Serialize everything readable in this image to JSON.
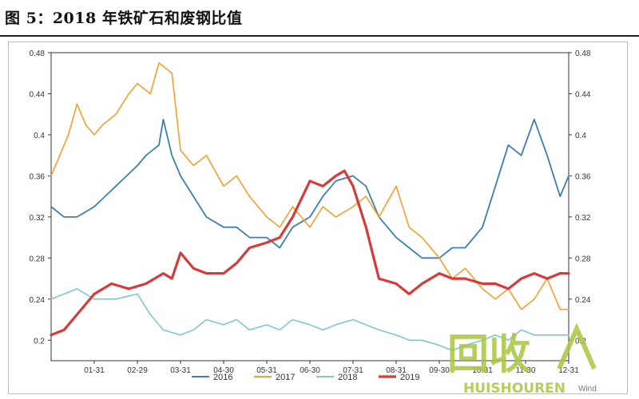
{
  "figure": {
    "title": "图 5：2018 年铁矿石和废钢比值"
  },
  "colors": {
    "2016": "#3b7fb0",
    "2017": "#f4a02e",
    "2018": "#7fc8cf",
    "2019": "#d63a3a",
    "axis": "#333333",
    "watermark": "#a8c43c"
  },
  "watermark": {
    "main": "回收",
    "sub": "HUISHOUREN",
    "source": "Wind"
  },
  "chart_data": {
    "type": "line",
    "title": "",
    "xlabel": "",
    "ylabel": "",
    "ylim": [
      0.18,
      0.48
    ],
    "yticks": [
      "0.2",
      "0.24",
      "0.28",
      "0.32",
      "0.36",
      "0.4",
      "0.44",
      "0.48"
    ],
    "ytick_values": [
      0.2,
      0.24,
      0.28,
      0.32,
      0.36,
      0.4,
      0.44,
      0.48
    ],
    "xlim": [
      0,
      12
    ],
    "xticks": [
      "01-31",
      "02-29",
      "03-31",
      "04-30",
      "05-31",
      "06-30",
      "07-31",
      "08-31",
      "09-30",
      "10-31",
      "11-30",
      "12-31"
    ],
    "xtick_values": [
      1,
      2,
      3,
      4,
      5,
      6,
      7,
      8,
      9,
      10,
      11,
      12
    ],
    "legend": {
      "position": "bottom"
    },
    "series": [
      {
        "name": "2016",
        "x": [
          0,
          0.3,
          0.6,
          1.0,
          1.5,
          2.0,
          2.2,
          2.5,
          2.6,
          2.8,
          3.0,
          3.3,
          3.6,
          4.0,
          4.3,
          4.6,
          5.0,
          5.3,
          5.6,
          6.0,
          6.3,
          6.6,
          7.0,
          7.3,
          7.6,
          8.0,
          8.3,
          8.6,
          9.0,
          9.3,
          9.6,
          10.0,
          10.3,
          10.6,
          10.9,
          11.2,
          11.5,
          11.8,
          12.0
        ],
        "values": [
          0.33,
          0.32,
          0.32,
          0.33,
          0.35,
          0.37,
          0.38,
          0.39,
          0.415,
          0.38,
          0.36,
          0.34,
          0.32,
          0.31,
          0.31,
          0.3,
          0.3,
          0.29,
          0.31,
          0.32,
          0.34,
          0.355,
          0.36,
          0.35,
          0.32,
          0.3,
          0.29,
          0.28,
          0.28,
          0.29,
          0.29,
          0.31,
          0.35,
          0.39,
          0.38,
          0.415,
          0.38,
          0.34,
          0.36
        ]
      },
      {
        "name": "2017",
        "x": [
          0,
          0.2,
          0.4,
          0.6,
          0.8,
          1.0,
          1.2,
          1.5,
          1.8,
          2.0,
          2.3,
          2.5,
          2.8,
          3.0,
          3.3,
          3.6,
          4.0,
          4.3,
          4.6,
          5.0,
          5.3,
          5.6,
          6.0,
          6.3,
          6.6,
          7.0,
          7.3,
          7.6,
          8.0,
          8.3,
          8.6,
          9.0,
          9.3,
          9.6,
          10.0,
          10.3,
          10.6,
          10.9,
          11.2,
          11.5,
          11.8,
          12.0
        ],
        "values": [
          0.36,
          0.38,
          0.4,
          0.43,
          0.41,
          0.4,
          0.41,
          0.42,
          0.44,
          0.45,
          0.44,
          0.47,
          0.46,
          0.385,
          0.37,
          0.38,
          0.35,
          0.36,
          0.34,
          0.32,
          0.31,
          0.33,
          0.31,
          0.33,
          0.32,
          0.33,
          0.34,
          0.32,
          0.35,
          0.31,
          0.3,
          0.28,
          0.26,
          0.27,
          0.25,
          0.24,
          0.25,
          0.23,
          0.24,
          0.26,
          0.23,
          0.23
        ]
      },
      {
        "name": "2018",
        "x": [
          0,
          0.3,
          0.6,
          1.0,
          1.5,
          2.0,
          2.3,
          2.6,
          3.0,
          3.3,
          3.6,
          4.0,
          4.3,
          4.6,
          5.0,
          5.3,
          5.6,
          6.0,
          6.3,
          6.6,
          7.0,
          7.3,
          7.6,
          8.0,
          8.3,
          8.6,
          9.0,
          9.3,
          9.6,
          10.0,
          10.3,
          10.6,
          10.9,
          11.2,
          11.5,
          11.8,
          12.0
        ],
        "values": [
          0.24,
          0.245,
          0.25,
          0.24,
          0.24,
          0.245,
          0.225,
          0.21,
          0.205,
          0.21,
          0.22,
          0.215,
          0.22,
          0.21,
          0.215,
          0.21,
          0.22,
          0.215,
          0.21,
          0.215,
          0.22,
          0.215,
          0.21,
          0.205,
          0.2,
          0.2,
          0.195,
          0.19,
          0.195,
          0.2,
          0.205,
          0.2,
          0.21,
          0.205,
          0.205,
          0.205,
          0.205
        ]
      },
      {
        "name": "2019",
        "x": [
          0,
          0.3,
          0.6,
          1.0,
          1.4,
          1.8,
          2.2,
          2.6,
          2.8,
          3.0,
          3.3,
          3.6,
          4.0,
          4.3,
          4.6,
          5.0,
          5.3,
          5.6,
          6.0,
          6.3,
          6.6,
          6.8,
          7.0,
          7.3,
          7.6,
          8.0,
          8.3,
          8.6,
          9.0,
          9.3,
          9.6,
          10.0,
          10.3,
          10.6,
          10.9,
          11.2,
          11.5,
          11.8,
          12.0
        ],
        "values": [
          0.205,
          0.21,
          0.225,
          0.245,
          0.255,
          0.25,
          0.255,
          0.265,
          0.26,
          0.285,
          0.27,
          0.265,
          0.265,
          0.275,
          0.29,
          0.295,
          0.3,
          0.32,
          0.355,
          0.35,
          0.36,
          0.365,
          0.35,
          0.31,
          0.26,
          0.255,
          0.245,
          0.255,
          0.265,
          0.26,
          0.26,
          0.255,
          0.255,
          0.25,
          0.26,
          0.265,
          0.26,
          0.265,
          0.265
        ]
      }
    ]
  }
}
